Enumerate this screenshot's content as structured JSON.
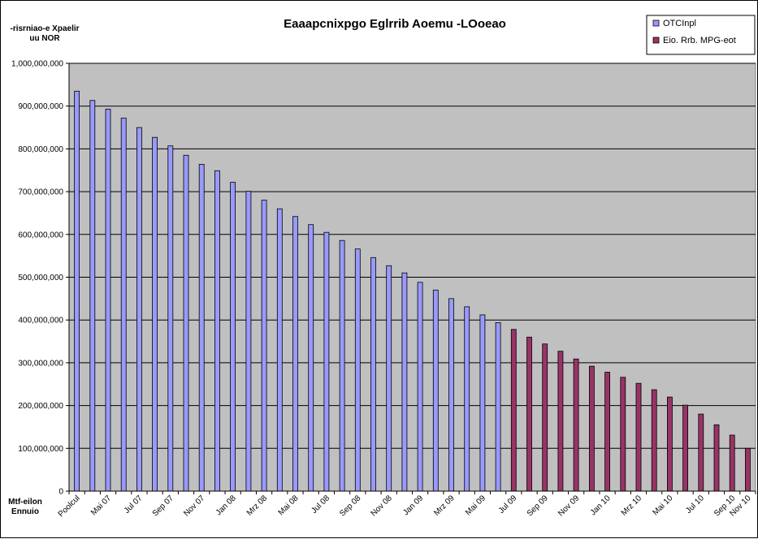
{
  "chart_data": {
    "type": "bar",
    "title": "Eaaapcnixpgo Eglrrib Aoemu -LOoeao",
    "ylabel": "-risrniao-e Xpaelir\nuu NOR",
    "xlabel": "Mtf-eilon\nEnnuio",
    "ylim": [
      0,
      1000000000
    ],
    "ytick_step": 100000000,
    "y_ticks": [
      "0",
      "100,000,000",
      "200,000,000",
      "300,000,000",
      "400,000,000",
      "500,000,000",
      "600,000,000",
      "700,000,000",
      "800,000,000",
      "900,000,000",
      "1,000,000,000"
    ],
    "grid": true,
    "legend_position": "top-right",
    "plot_background": "#c0c0c0",
    "category_count": 44,
    "tick_labels": [
      {
        "index": 0,
        "label": "Poolcul"
      },
      {
        "index": 2,
        "label": "Mai 07"
      },
      {
        "index": 4,
        "label": "Jul 07"
      },
      {
        "index": 6,
        "label": "Sep 07"
      },
      {
        "index": 8,
        "label": "Nov 07"
      },
      {
        "index": 10,
        "label": "Jan 08"
      },
      {
        "index": 12,
        "label": "Mrz 08"
      },
      {
        "index": 14,
        "label": "Mai 08"
      },
      {
        "index": 16,
        "label": "Jul 08"
      },
      {
        "index": 18,
        "label": "Sep 08"
      },
      {
        "index": 20,
        "label": "Nov 08"
      },
      {
        "index": 22,
        "label": "Jan 09"
      },
      {
        "index": 24,
        "label": "Mrz 09"
      },
      {
        "index": 26,
        "label": "Mai 09"
      },
      {
        "index": 28,
        "label": "Jul 09"
      },
      {
        "index": 30,
        "label": "Sep 09"
      },
      {
        "index": 32,
        "label": "Nov 09"
      },
      {
        "index": 34,
        "label": "Jan 10"
      },
      {
        "index": 36,
        "label": "Mrz 10"
      },
      {
        "index": 38,
        "label": "Mai 10"
      },
      {
        "index": 40,
        "label": "Jul 10"
      },
      {
        "index": 42,
        "label": "Sep 10"
      },
      {
        "index": 43,
        "label": "Nov 10"
      }
    ],
    "series": [
      {
        "name": "OTCInpl",
        "color": "#9999ff",
        "start_index": 0,
        "values": [
          935000000,
          913000000,
          893000000,
          872000000,
          850000000,
          827000000,
          807000000,
          785000000,
          764000000,
          749000000,
          722000000,
          701000000,
          680000000,
          660000000,
          642000000,
          623000000,
          605000000,
          586000000,
          566000000,
          546000000,
          527000000,
          510000000,
          488000000,
          470000000,
          450000000,
          431000000,
          412000000,
          394000000
        ]
      },
      {
        "name": "Eio. Rrb. MPG-eot",
        "color": "#993366",
        "start_index": 28,
        "values": [
          378000000,
          360000000,
          344000000,
          327000000,
          309000000,
          292000000,
          278000000,
          266000000,
          252000000,
          237000000,
          220000000,
          201000000,
          180000000,
          155000000,
          131000000,
          100000000
        ]
      }
    ]
  }
}
